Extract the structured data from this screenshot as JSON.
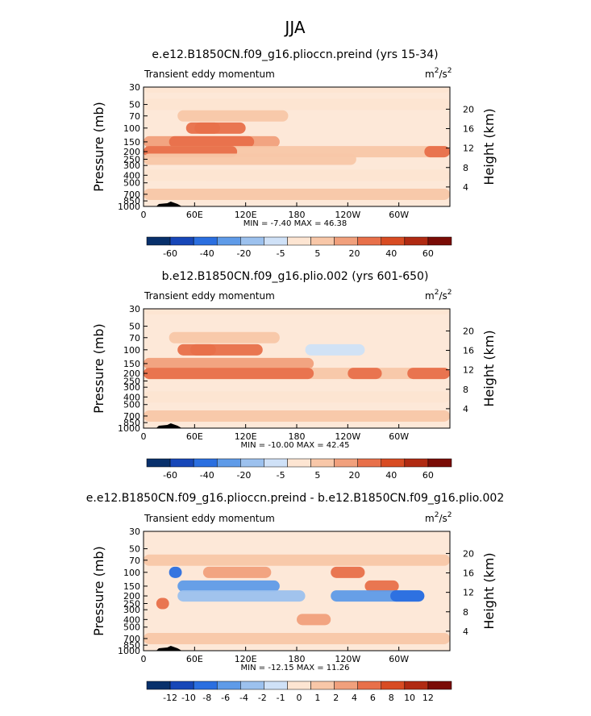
{
  "figure": {
    "title": "JJA"
  },
  "colors": {
    "scale": [
      "#08306b",
      "#1747b8",
      "#2b6fe0",
      "#5f9be8",
      "#9cc1ee",
      "#cfe1f7",
      "#fde5d2",
      "#f8c7a8",
      "#f1a07c",
      "#e8704a",
      "#d84c23",
      "#b02a12",
      "#7a0c06"
    ]
  },
  "chart_data": [
    {
      "type": "heatmap",
      "title": "e.e12.B1850CN.f09_g16.plioccn.preind (yrs 15-34)",
      "variable": "Transient eddy momentum",
      "units": "m2/s2",
      "units_base": "m",
      "units_exp1": "2",
      "units_mid": "/s",
      "units_exp2": "2",
      "ylabel": "Pressure (mb)",
      "ylabel_right": "Height (km)",
      "xlabel": "",
      "x_ticks": [
        "0",
        "60E",
        "120E",
        "180",
        "120W",
        "60W"
      ],
      "x_tick_lon": [
        0,
        60,
        120,
        180,
        240,
        300
      ],
      "xlim": [
        0,
        360
      ],
      "y_ticks": [
        "30",
        "50",
        "70",
        "100",
        "150",
        "200",
        "250",
        "300",
        "400",
        "500",
        "700",
        "850",
        "1000"
      ],
      "y_tick_p": [
        30,
        50,
        70,
        100,
        150,
        200,
        250,
        300,
        400,
        500,
        700,
        850,
        1000
      ],
      "ylim": [
        1000,
        30
      ],
      "height_ticks": [
        "4",
        "8",
        "12",
        "16",
        "20"
      ],
      "height_km": [
        4,
        8,
        12,
        16,
        20
      ],
      "stats": "MIN =  -7.40   MAX =  46.38",
      "min": -7.4,
      "max": 46.38,
      "colorbar_levels": [
        "-60",
        "-40",
        "-20",
        "-5",
        "5",
        "20",
        "40",
        "60"
      ],
      "levels": [
        -60,
        -50,
        -40,
        -30,
        -20,
        -10,
        -5,
        0,
        5,
        10,
        20,
        30,
        40,
        50,
        60
      ],
      "bands": [
        {
          "p": 30,
          "lon": [
            0,
            360
          ],
          "lev": -1
        },
        {
          "p": 50,
          "lon": [
            0,
            360
          ],
          "lev": -1
        },
        {
          "p": 70,
          "lon": [
            40,
            170
          ],
          "lev": 5
        },
        {
          "p": 100,
          "lon": [
            50,
            120
          ],
          "lev": 20
        },
        {
          "p": 100,
          "lon": [
            60,
            90
          ],
          "lev": 30
        },
        {
          "p": 150,
          "lon": [
            0,
            160
          ],
          "lev": 10
        },
        {
          "p": 150,
          "lon": [
            30,
            130
          ],
          "lev": 20
        },
        {
          "p": 200,
          "lon": [
            0,
            360
          ],
          "lev": 5
        },
        {
          "p": 200,
          "lon": [
            0,
            110
          ],
          "lev": 20
        },
        {
          "p": 200,
          "lon": [
            330,
            360
          ],
          "lev": 30
        },
        {
          "p": 250,
          "lon": [
            0,
            250
          ],
          "lev": 5
        },
        {
          "p": 400,
          "lon": [
            0,
            360
          ],
          "lev": -1
        },
        {
          "p": 700,
          "lon": [
            0,
            360
          ],
          "lev": 2
        }
      ]
    },
    {
      "type": "heatmap",
      "title": "b.e12.B1850CN.f09_g16.plio.002 (yrs 601-650)",
      "variable": "Transient eddy momentum",
      "units": "m2/s2",
      "units_base": "m",
      "units_exp1": "2",
      "units_mid": "/s",
      "units_exp2": "2",
      "ylabel": "Pressure (mb)",
      "ylabel_right": "Height (km)",
      "xlabel": "",
      "x_ticks": [
        "0",
        "60E",
        "120E",
        "180",
        "120W",
        "60W"
      ],
      "x_tick_lon": [
        0,
        60,
        120,
        180,
        240,
        300
      ],
      "xlim": [
        0,
        360
      ],
      "y_ticks": [
        "30",
        "50",
        "70",
        "100",
        "150",
        "200",
        "250",
        "300",
        "400",
        "500",
        "700",
        "850",
        "1000"
      ],
      "y_tick_p": [
        30,
        50,
        70,
        100,
        150,
        200,
        250,
        300,
        400,
        500,
        700,
        850,
        1000
      ],
      "ylim": [
        1000,
        30
      ],
      "height_ticks": [
        "4",
        "8",
        "12",
        "16",
        "20"
      ],
      "height_km": [
        4,
        8,
        12,
        16,
        20
      ],
      "stats": "MIN = -10.00   MAX =  42.45",
      "min": -10.0,
      "max": 42.45,
      "colorbar_levels": [
        "-60",
        "-40",
        "-20",
        "-5",
        "5",
        "20",
        "40",
        "60"
      ],
      "levels": [
        -60,
        -50,
        -40,
        -30,
        -20,
        -10,
        -5,
        0,
        5,
        10,
        20,
        30,
        40,
        50,
        60
      ],
      "bands": [
        {
          "p": 30,
          "lon": [
            0,
            360
          ],
          "lev": -1
        },
        {
          "p": 70,
          "lon": [
            30,
            160
          ],
          "lev": 5
        },
        {
          "p": 100,
          "lon": [
            40,
            140
          ],
          "lev": 20
        },
        {
          "p": 100,
          "lon": [
            55,
            85
          ],
          "lev": 30
        },
        {
          "p": 100,
          "lon": [
            190,
            260
          ],
          "lev": -5
        },
        {
          "p": 150,
          "lon": [
            0,
            200
          ],
          "lev": 10
        },
        {
          "p": 200,
          "lon": [
            0,
            360
          ],
          "lev": 5
        },
        {
          "p": 200,
          "lon": [
            0,
            200
          ],
          "lev": 20
        },
        {
          "p": 200,
          "lon": [
            240,
            280
          ],
          "lev": 20
        },
        {
          "p": 200,
          "lon": [
            310,
            360
          ],
          "lev": 30
        },
        {
          "p": 400,
          "lon": [
            0,
            360
          ],
          "lev": -1
        },
        {
          "p": 700,
          "lon": [
            0,
            360
          ],
          "lev": 2
        }
      ]
    },
    {
      "type": "heatmap",
      "title": "e.e12.B1850CN.f09_g16.plioccn.preind - b.e12.B1850CN.f09_g16.plio.002",
      "variable": "Transient eddy momentum",
      "units": "m2/s2",
      "units_base": "m",
      "units_exp1": "2",
      "units_mid": "/s",
      "units_exp2": "2",
      "ylabel": "Pressure (mb)",
      "ylabel_right": "Height (km)",
      "xlabel": "",
      "x_ticks": [
        "0",
        "60E",
        "120E",
        "180",
        "120W",
        "60W"
      ],
      "x_tick_lon": [
        0,
        60,
        120,
        180,
        240,
        300
      ],
      "xlim": [
        0,
        360
      ],
      "y_ticks": [
        "30",
        "50",
        "70",
        "100",
        "150",
        "200",
        "250",
        "300",
        "400",
        "500",
        "700",
        "850",
        "1000"
      ],
      "y_tick_p": [
        30,
        50,
        70,
        100,
        150,
        200,
        250,
        300,
        400,
        500,
        700,
        850,
        1000
      ],
      "ylim": [
        1000,
        30
      ],
      "height_ticks": [
        "4",
        "8",
        "12",
        "16",
        "20"
      ],
      "height_km": [
        4,
        8,
        12,
        16,
        20
      ],
      "stats": "MIN = -12.15   MAX =  11.26",
      "min": -12.15,
      "max": 11.26,
      "colorbar_levels": [
        "-12",
        "-10",
        "-8",
        "-6",
        "-4",
        "-2",
        "-1",
        "0",
        "1",
        "2",
        "4",
        "6",
        "8",
        "10",
        "12"
      ],
      "levels": [
        -12,
        -10,
        -8,
        -6,
        -4,
        -2,
        -1,
        0,
        1,
        2,
        4,
        6,
        8,
        10,
        12
      ],
      "bands": [
        {
          "p": 70,
          "lon": [
            0,
            360
          ],
          "lev": 1
        },
        {
          "p": 100,
          "lon": [
            70,
            150
          ],
          "lev": 2
        },
        {
          "p": 100,
          "lon": [
            220,
            260
          ],
          "lev": 6
        },
        {
          "p": 100,
          "lon": [
            30,
            45
          ],
          "lev": -8
        },
        {
          "p": 150,
          "lon": [
            40,
            160
          ],
          "lev": -4
        },
        {
          "p": 150,
          "lon": [
            260,
            300
          ],
          "lev": 4
        },
        {
          "p": 200,
          "lon": [
            40,
            190
          ],
          "lev": -2
        },
        {
          "p": 200,
          "lon": [
            220,
            330
          ],
          "lev": -4
        },
        {
          "p": 200,
          "lon": [
            290,
            330
          ],
          "lev": -8
        },
        {
          "p": 250,
          "lon": [
            15,
            30
          ],
          "lev": 4
        },
        {
          "p": 400,
          "lon": [
            180,
            220
          ],
          "lev": 2
        },
        {
          "p": 700,
          "lon": [
            0,
            360
          ],
          "lev": 1
        }
      ]
    }
  ]
}
